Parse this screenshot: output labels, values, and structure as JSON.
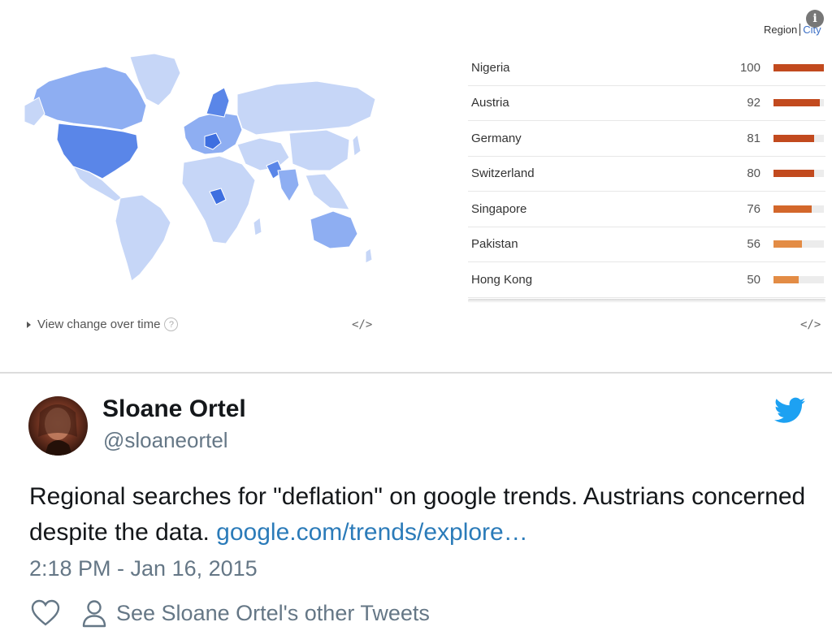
{
  "trends": {
    "toggle": {
      "region_label": "Region",
      "city_label": "City"
    },
    "view_change_label": "View change over time",
    "help_glyph": "?",
    "embed_glyph": "</>",
    "info_glyph": "i",
    "regions": [
      {
        "name": "Nigeria",
        "value": 100,
        "color": "#c24a1e"
      },
      {
        "name": "Austria",
        "value": 92,
        "color": "#c24a1e"
      },
      {
        "name": "Germany",
        "value": 81,
        "color": "#c24a1e"
      },
      {
        "name": "Switzerland",
        "value": 80,
        "color": "#c24a1e"
      },
      {
        "name": "Singapore",
        "value": 76,
        "color": "#d3672b"
      },
      {
        "name": "Pakistan",
        "value": 56,
        "color": "#e38c45"
      },
      {
        "name": "Hong Kong",
        "value": 50,
        "color": "#e38c45"
      }
    ],
    "map_colors": {
      "base": "#c6d6f7",
      "mid": "#8eaef2",
      "dark": "#5a86e8",
      "darkest": "#3e6fe0"
    }
  },
  "tweet": {
    "author_name": "Sloane Ortel",
    "author_handle": "@sloaneortel",
    "text": "Regional searches for \"deflation\" on google trends. Austrians concerned despite the data. ",
    "link_text": "google.com/trends/explore…",
    "timestamp": "2:18 PM - Jan 16, 2015",
    "other_tweets_label": "See Sloane Ortel's other Tweets",
    "brand_color": "#1da1f2",
    "link_color": "#2b7bb9"
  }
}
